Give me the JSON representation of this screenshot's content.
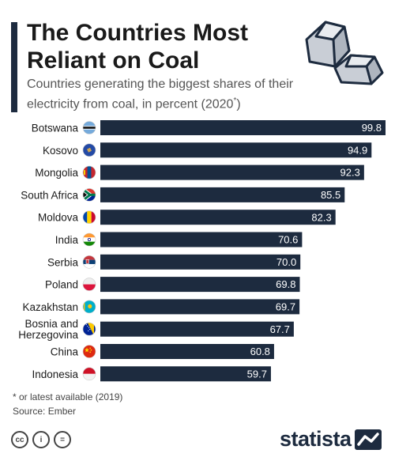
{
  "header": {
    "title": "The Countries Most Reliant on Coal",
    "subtitle": "Countries generating the biggest shares of their electricity from coal, in percent (2020",
    "subtitle_mark": "*",
    "subtitle_end": ")"
  },
  "icons": {
    "illustration": "coal-lumps-icon",
    "cc": [
      "cc-icon",
      "attribution-icon",
      "no-derivatives-icon"
    ],
    "brand_logo": "statista-logo-icon"
  },
  "colors": {
    "bar": "#1d2b3f",
    "text": "#1a1a1a",
    "value_text": "#ffffff"
  },
  "chart_data": {
    "type": "bar",
    "orientation": "horizontal",
    "title": "The Countries Most Reliant on Coal",
    "categories": [
      "Botswana",
      "Kosovo",
      "Mongolia",
      "South Africa",
      "Moldova",
      "India",
      "Serbia",
      "Poland",
      "Kazakhstan",
      "Bosnia and Herzegovina",
      "China",
      "Indonesia"
    ],
    "values": [
      99.8,
      94.9,
      92.3,
      85.5,
      82.3,
      70.6,
      70.0,
      69.8,
      69.7,
      67.7,
      60.8,
      59.7
    ],
    "value_labels": [
      "99.8",
      "94.9",
      "92.3",
      "85.5",
      "82.3",
      "70.6",
      "70.0",
      "69.8",
      "69.7",
      "67.7",
      "60.8",
      "59.7"
    ],
    "flags": [
      "botswana-flag-icon",
      "kosovo-flag-icon",
      "mongolia-flag-icon",
      "south-africa-flag-icon",
      "moldova-flag-icon",
      "india-flag-icon",
      "serbia-flag-icon",
      "poland-flag-icon",
      "kazakhstan-flag-icon",
      "bosnia-flag-icon",
      "china-flag-icon",
      "indonesia-flag-icon"
    ],
    "xlim": [
      0,
      100
    ],
    "grid": false,
    "legend": "none"
  },
  "footer": {
    "footnote": "* or latest available (2019)",
    "source": "Source: Ember",
    "cc_labels": [
      "cc",
      "i",
      "="
    ],
    "brand": "statista"
  }
}
